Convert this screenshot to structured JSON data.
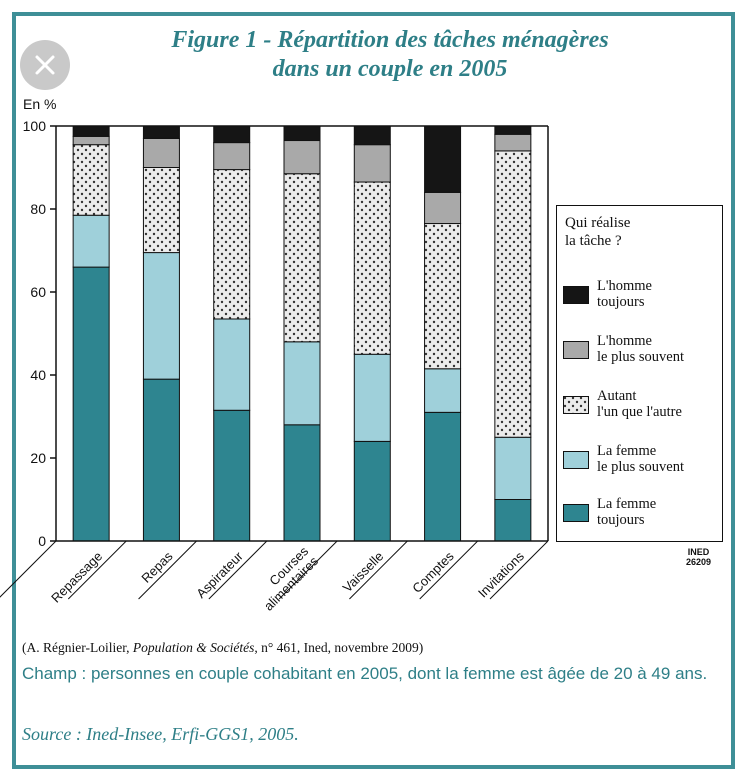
{
  "header": {
    "title_line1": "Figure 1 - Répartition des tâches ménagères",
    "title_line2": "dans un couple en 2005",
    "close_icon": "close-icon"
  },
  "colors": {
    "frame": "#3e8f97",
    "title": "#2e7f87",
    "homme_toujours": "#151515",
    "homme_plus_souvent": "#a9a9a9",
    "autant": "#e9e9e9",
    "femme_plus_souvent": "#9fd0da",
    "femme_toujours": "#2e8590"
  },
  "chart_data": {
    "type": "bar",
    "stacked": true,
    "ylabel": "En %",
    "ylim": [
      0,
      100
    ],
    "yticks": [
      0,
      20,
      40,
      60,
      80,
      100
    ],
    "categories": [
      "Repassage",
      "Repas",
      "Aspirateur",
      "Courses alimentaires",
      "Vaisselle",
      "Comptes",
      "Invitations"
    ],
    "series": [
      {
        "name": "La femme toujours",
        "values": [
          66,
          39,
          31.5,
          28,
          24,
          31,
          10
        ]
      },
      {
        "name": "La femme le plus souvent",
        "values": [
          12.5,
          30.5,
          22,
          20,
          21,
          10.5,
          15
        ]
      },
      {
        "name": "Autant l'un que l'autre",
        "values": [
          17,
          20.5,
          36,
          40.5,
          41.5,
          35,
          69
        ]
      },
      {
        "name": "L'homme le plus souvent",
        "values": [
          2,
          7,
          6.5,
          8,
          9,
          7.5,
          4
        ]
      },
      {
        "name": "L'homme toujours",
        "values": [
          2.5,
          3,
          4,
          3.5,
          4.5,
          16,
          2
        ]
      }
    ],
    "legend_position": "right"
  },
  "legend": {
    "title_line1": "Qui réalise",
    "title_line2": "la tâche ?",
    "items": [
      {
        "line1": "L'homme",
        "line2": "toujours"
      },
      {
        "line1": "L'homme",
        "line2": "le plus souvent"
      },
      {
        "line1": "Autant",
        "line2": "l'un que l'autre"
      },
      {
        "line1": "La femme",
        "line2": "le plus souvent"
      },
      {
        "line1": "La femme",
        "line2": "toujours"
      }
    ]
  },
  "ined_label": {
    "line1": "INED",
    "line2": "26209"
  },
  "footer": {
    "reference_prefix": "(A. Régnier-Loilier, ",
    "reference_journal": "Population & Sociétés",
    "reference_suffix": ", n° 461, Ined, novembre 2009)",
    "champ": "Champ : personnes en couple cohabitant en 2005, dont la femme est âgée de 20 à 49 ans.",
    "source": "Source : Ined-Insee, Erfi-GGS1, 2005."
  }
}
